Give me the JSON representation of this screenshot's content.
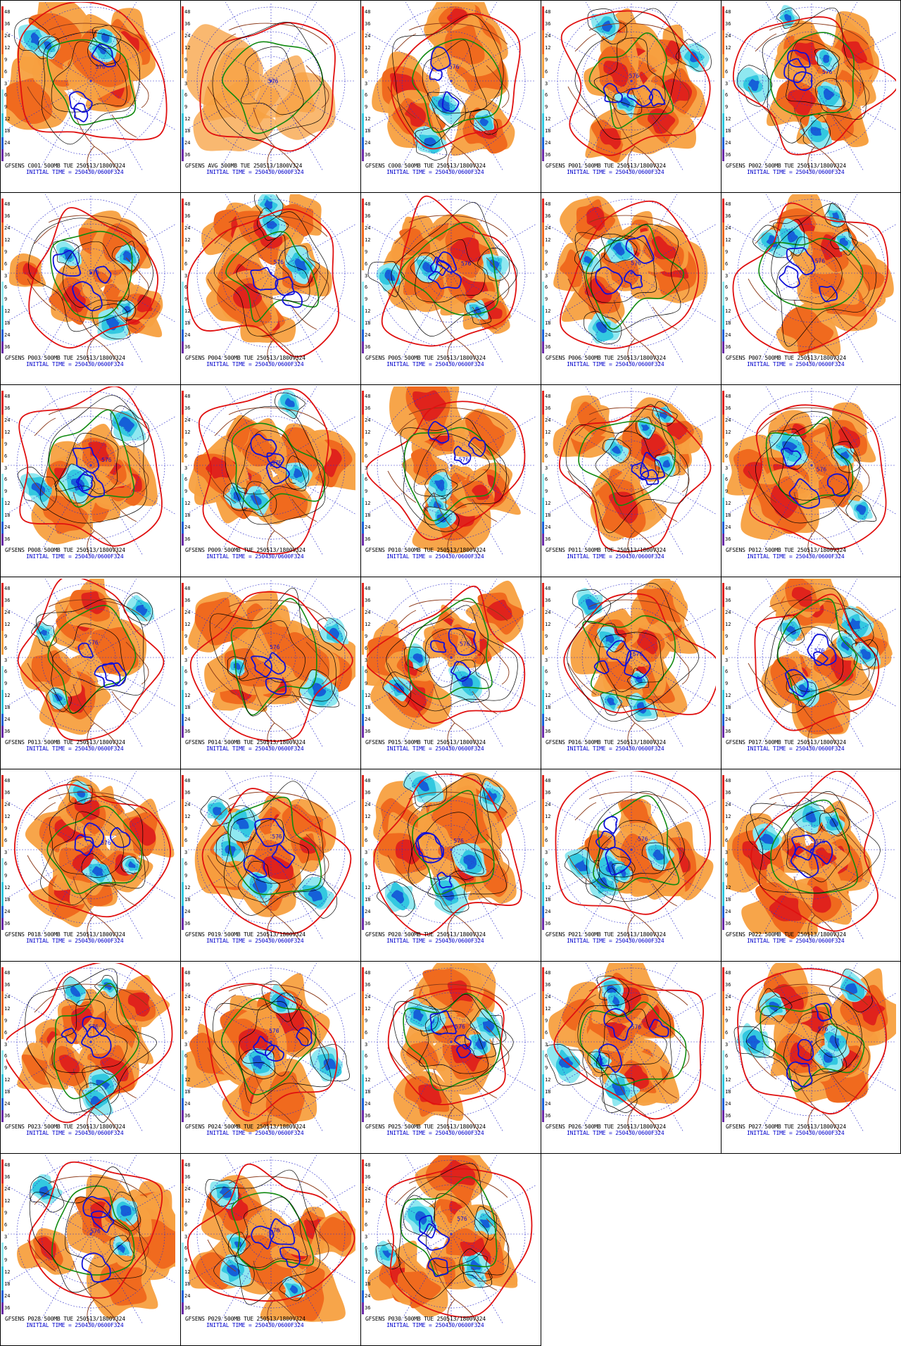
{
  "grid": {
    "columns": 5,
    "panel_count": 33
  },
  "scale_ticks": [
    "48",
    "36",
    "24",
    "12",
    "9",
    "6",
    "3",
    "6",
    "9",
    "12",
    "18",
    "24",
    "36"
  ],
  "contour_label": "576",
  "colors": {
    "warm_light": "#f7a040",
    "warm_mid": "#f06a1e",
    "warm_deep": "#e0231c",
    "cold_light": "#8fe8f0",
    "cold_mid": "#33c8e0",
    "cold_deep": "#1560d8",
    "contour_red": "#e01010",
    "contour_green": "#108a10",
    "contour_blue": "#1010d8",
    "coast": "#8b3a1a",
    "grid_lines": "#3333cc"
  },
  "panels": [
    {
      "caption": "GFSENS C001 500MB TUE 250513/1800V324",
      "init": "INITIAL TIME = 250430/0600F324"
    },
    {
      "caption": "GFSENS AVG 500MB TUE 250513/1800V324",
      "init": "INITIAL TIME = 250430/0600F324"
    },
    {
      "caption": "GFSENS C000 500MB TUE 250513/1800V324",
      "init": "INITIAL TIME = 250430/0600F324"
    },
    {
      "caption": "GFSENS P001 500MB TUE 250513/1800V324",
      "init": "INITIAL TIME = 250430/0600F324"
    },
    {
      "caption": "GFSENS P002 500MB TUE 250513/1800V324",
      "init": "INITIAL TIME = 250430/0600F324"
    },
    {
      "caption": "GFSENS P003 500MB TUE 250513/1800V324",
      "init": "INITIAL TIME = 250430/0600F324"
    },
    {
      "caption": "GFSENS P004 500MB TUE 250513/1800V324",
      "init": "INITIAL TIME = 250430/0600F324"
    },
    {
      "caption": "GFSENS P005 500MB TUE 250513/1800V324",
      "init": "INITIAL TIME = 250430/0600F324"
    },
    {
      "caption": "GFSENS P006 500MB TUE 250513/1800V324",
      "init": "INITIAL TIME = 250430/0600F324"
    },
    {
      "caption": "GFSENS P007 500MB TUE 250513/1800V324",
      "init": "INITIAL TIME = 250430/0600F324"
    },
    {
      "caption": "GFSENS P008 500MB TUE 250513/1800V324",
      "init": "INITIAL TIME = 250430/0600F324"
    },
    {
      "caption": "GFSENS P009 500MB TUE 250513/1800V324",
      "init": "INITIAL TIME = 250430/0600F324"
    },
    {
      "caption": "GFSENS P010 500MB TUE 250513/1800V324",
      "init": "INITIAL TIME = 250430/0600F324"
    },
    {
      "caption": "GFSENS P011 500MB TUE 250513/1800V324",
      "init": "INITIAL TIME = 250430/0600F324"
    },
    {
      "caption": "GFSENS P012 500MB TUE 250513/1800V324",
      "init": "INITIAL TIME = 250430/0600F324"
    },
    {
      "caption": "GFSENS P013 500MB TUE 250513/1800V324",
      "init": "INITIAL TIME = 250430/0600F324"
    },
    {
      "caption": "GFSENS P014 500MB TUE 250513/1800V324",
      "init": "INITIAL TIME = 250430/0600F324"
    },
    {
      "caption": "GFSENS P015 500MB TUE 250513/1800V324",
      "init": "INITIAL TIME = 250430/0600F324"
    },
    {
      "caption": "GFSENS P016 500MB TUE 250513/1800V324",
      "init": "INITIAL TIME = 250430/0600F324"
    },
    {
      "caption": "GFSENS P017 500MB TUE 250513/1800V324",
      "init": "INITIAL TIME = 250430/0600F324"
    },
    {
      "caption": "GFSENS P018 500MB TUE 250513/1800V324",
      "init": "INITIAL TIME = 250430/0600F324"
    },
    {
      "caption": "GFSENS P019 500MB TUE 250513/1800V324",
      "init": "INITIAL TIME = 250430/0600F324"
    },
    {
      "caption": "GFSENS P020 500MB TUE 250513/1800V324",
      "init": "INITIAL TIME = 250430/0600F324"
    },
    {
      "caption": "GFSENS P021 500MB TUE 250513/1800V324",
      "init": "INITIAL TIME = 250430/0600F324"
    },
    {
      "caption": "GFSENS P022 500MB TUE 250513/1800V324",
      "init": "INITIAL TIME = 250430/0600F324"
    },
    {
      "caption": "GFSENS P023 500MB TUE 250513/1800V324",
      "init": "INITIAL TIME = 250430/0600F324"
    },
    {
      "caption": "GFSENS P024 500MB TUE 250513/1800V324",
      "init": "INITIAL TIME = 250430/0600F324"
    },
    {
      "caption": "GFSENS P025 500MB TUE 250513/1800V324",
      "init": "INITIAL TIME = 250430/0600F324"
    },
    {
      "caption": "GFSENS P026 500MB TUE 250513/1800V324",
      "init": "INITIAL TIME = 250430/0600F324"
    },
    {
      "caption": "GFSENS P027 500MB TUE 250513/1800V324",
      "init": "INITIAL TIME = 250430/0600F324"
    },
    {
      "caption": "GFSENS P028 500MB TUE 250513/1800V324",
      "init": "INITIAL TIME = 250430/0600F324"
    },
    {
      "caption": "GFSENS P029 500MB TUE 250513/1800V324",
      "init": "INITIAL TIME = 250430/0600F324"
    },
    {
      "caption": "GFSENS P030 500MB TUE 250513/1800V324",
      "init": "INITIAL TIME = 250430/0600F324"
    }
  ]
}
